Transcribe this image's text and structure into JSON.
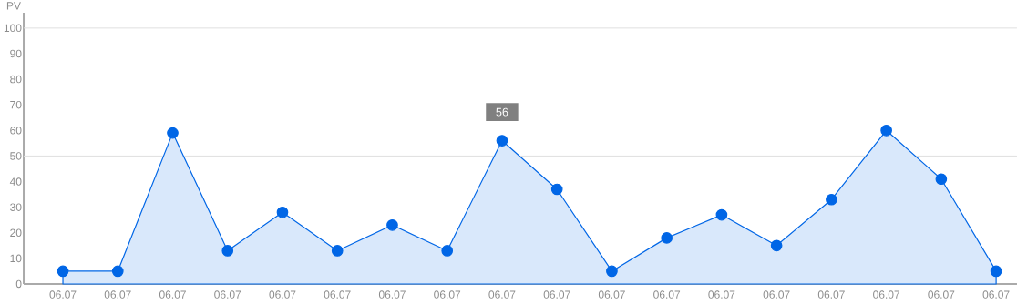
{
  "chart_data": {
    "type": "area",
    "ylabel": "PV",
    "categories": [
      "06.07",
      "06.07",
      "06.07",
      "06.07",
      "06.07",
      "06.07",
      "06.07",
      "06.07",
      "06.07",
      "06.07",
      "06.07",
      "06.07",
      "06.07",
      "06.07",
      "06.07",
      "06.07",
      "06.07",
      "06.07"
    ],
    "series": [
      {
        "color": "#0066e6",
        "values": [
          5,
          5,
          59,
          13,
          28,
          13,
          23,
          13,
          56,
          37,
          5,
          18,
          27,
          15,
          33,
          60,
          41,
          5
        ],
        "value_labels": [
          null,
          null,
          null,
          null,
          null,
          null,
          null,
          null,
          "56",
          null,
          null,
          null,
          null,
          null,
          null,
          null,
          null,
          null
        ]
      }
    ],
    "ylim": [
      0,
      106
    ],
    "yticks": [
      0,
      10,
      20,
      30,
      40,
      50,
      60,
      70,
      80,
      90,
      100
    ],
    "ref_lines": [
      {
        "axis": "y",
        "value": 50,
        "color": "#e0e0e0"
      },
      {
        "axis": "y",
        "value": 100,
        "color": "#e0e0e0"
      }
    ],
    "marker": "circle"
  }
}
